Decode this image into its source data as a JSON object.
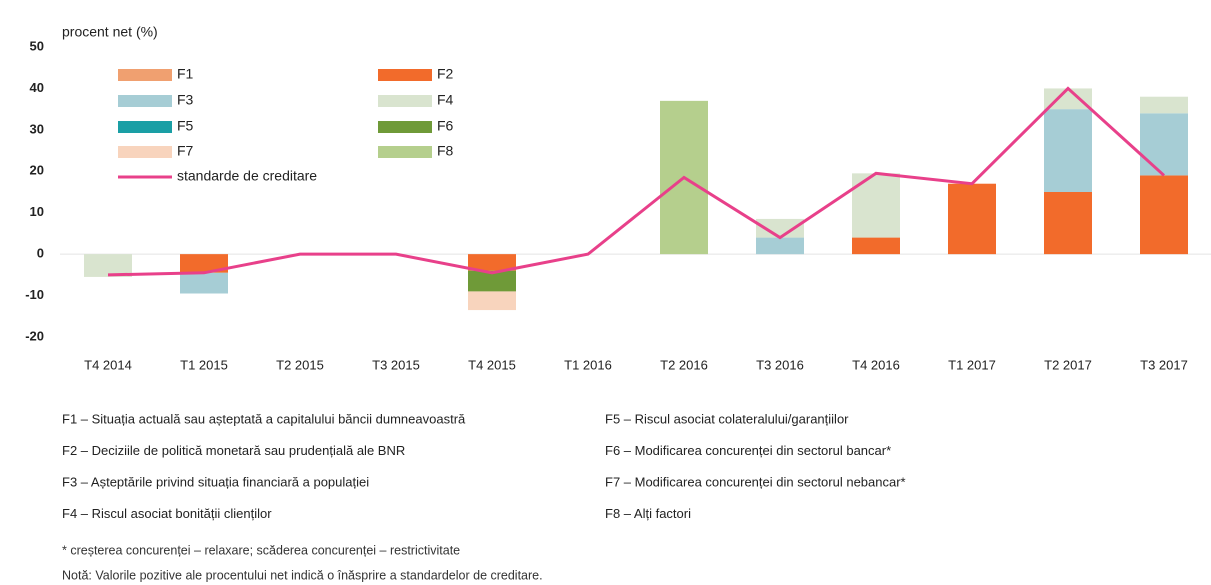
{
  "chart_data": {
    "type": "bar",
    "y_axis_label": "procent net (%)",
    "categories": [
      "T4 2014",
      "T1 2015",
      "T2 2015",
      "T3 2015",
      "T4 2015",
      "T1 2016",
      "T2 2016",
      "T3 2016",
      "T4 2016",
      "T1 2017",
      "T2 2017",
      "T3 2017"
    ],
    "series": [
      {
        "name": "F1",
        "color": "#f0a070",
        "values": [
          null,
          null,
          null,
          null,
          null,
          null,
          null,
          null,
          null,
          null,
          null,
          null
        ]
      },
      {
        "name": "F2",
        "color": "#f26b2b",
        "values": [
          null,
          -4.5,
          null,
          null,
          -4,
          null,
          null,
          null,
          4,
          17,
          15,
          19
        ]
      },
      {
        "name": "F3",
        "color": "#a6cdd5",
        "values": [
          null,
          -5,
          null,
          null,
          null,
          null,
          null,
          4,
          null,
          null,
          20,
          15
        ]
      },
      {
        "name": "F4",
        "color": "#d9e4cf",
        "values": [
          -5.5,
          null,
          null,
          null,
          null,
          null,
          null,
          4.5,
          15.5,
          null,
          5,
          4
        ]
      },
      {
        "name": "F5",
        "color": "#1a9fa5",
        "values": [
          null,
          null,
          null,
          null,
          null,
          null,
          null,
          null,
          null,
          null,
          null,
          null
        ]
      },
      {
        "name": "F6",
        "color": "#6f9a38",
        "values": [
          null,
          null,
          null,
          null,
          -5,
          null,
          null,
          null,
          null,
          null,
          null,
          null
        ]
      },
      {
        "name": "F7",
        "color": "#f8d4bd",
        "values": [
          null,
          null,
          null,
          null,
          -4.5,
          null,
          null,
          null,
          null,
          null,
          null,
          null
        ]
      },
      {
        "name": "F8",
        "color": "#b5cf8d",
        "values": [
          null,
          null,
          null,
          null,
          null,
          null,
          37,
          null,
          null,
          null,
          null,
          null
        ]
      },
      {
        "name": "standarde de creditare",
        "type": "line",
        "color": "#e8408a",
        "values": [
          -5,
          -4.5,
          0,
          0,
          -4.5,
          0,
          18.5,
          4,
          19.5,
          17,
          40,
          19
        ]
      }
    ],
    "ylim": [
      -20,
      50
    ],
    "yticks": [
      -20,
      -10,
      0,
      10,
      20,
      30,
      40,
      50
    ],
    "grid": false,
    "factor_notes": [
      "F1 – Situația actuală sau așteptată a capitalului băncii dumneavoastră",
      "F2 – Deciziile de politică monetară sau prudențială ale BNR",
      "F3 – Așteptările privind situația financiară a populației",
      "F4 – Riscul asociat bonității clienților",
      "F5 – Riscul asociat colateralului/garanțiilor",
      "F6 – Modificarea concurenței din sectorul bancar*",
      "F7 – Modificarea concurenței din sectorul nebancar*",
      "F8 – Alți factori"
    ],
    "footnotes": [
      "* creșterea concurenței – relaxare; scăderea concurenței – restrictivitate",
      "Notă: Valorile pozitive ale procentului net indică o înăsprire a standardelor de creditare."
    ]
  }
}
